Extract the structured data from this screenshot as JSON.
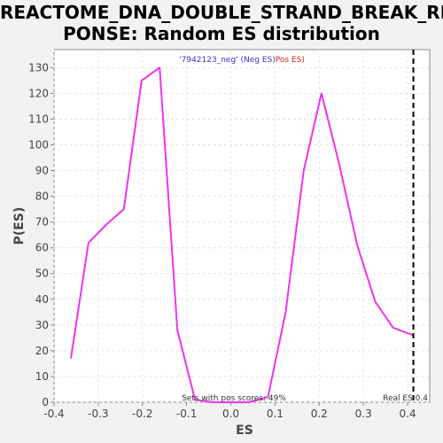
{
  "chart_data": {
    "type": "line",
    "title_lines": [
      "REACTOME_DNA_DOUBLE_STRAND_BREAK_RES",
      "PONSE: Random ES distribution"
    ],
    "xlabel": "ES",
    "ylabel": "P(ES)",
    "xlim": [
      -0.4,
      0.45
    ],
    "ylim": [
      0,
      137
    ],
    "x_ticks": [
      -0.4,
      -0.3,
      -0.2,
      -0.1,
      0.0,
      0.1,
      0.2,
      0.3,
      0.4
    ],
    "x_tick_labels": [
      "-0.4",
      "-0.3",
      "-0.2",
      "-0.1",
      "0.0",
      "0.1",
      "0.2",
      "0.3",
      "0.4"
    ],
    "y_ticks": [
      0,
      10,
      20,
      30,
      40,
      50,
      60,
      70,
      80,
      90,
      100,
      110,
      120,
      130
    ],
    "y_tick_labels": [
      "0",
      "10",
      "20",
      "30",
      "40",
      "50",
      "60",
      "70",
      "80",
      "90",
      "100",
      "110",
      "120",
      "130"
    ],
    "grid": true,
    "legend": {
      "position": "top-center",
      "parts": [
        {
          "text": "'7942123_neg' (Neg ES)",
          "color": "#3333cc"
        },
        {
          "text": "Pos ES)",
          "color": "#dd2222"
        }
      ]
    },
    "series": [
      {
        "color": "#ee33ee",
        "x": [
          -0.362,
          -0.322,
          -0.282,
          -0.242,
          -0.202,
          -0.161,
          -0.121,
          -0.081,
          -0.041,
          0.0,
          0.041,
          0.084,
          0.124,
          0.165,
          0.205,
          0.246,
          0.286,
          0.327,
          0.367,
          0.413
        ],
        "y": [
          17,
          62,
          69,
          75,
          125,
          130,
          28,
          1,
          0,
          0,
          0,
          2,
          35,
          90,
          120,
          92,
          61,
          39,
          29,
          26
        ]
      }
    ],
    "real_es": {
      "value": 0.413,
      "label": "Real ES 0.4",
      "color": "#000000"
    },
    "annotation": "Sets with pos scores: 49%"
  }
}
